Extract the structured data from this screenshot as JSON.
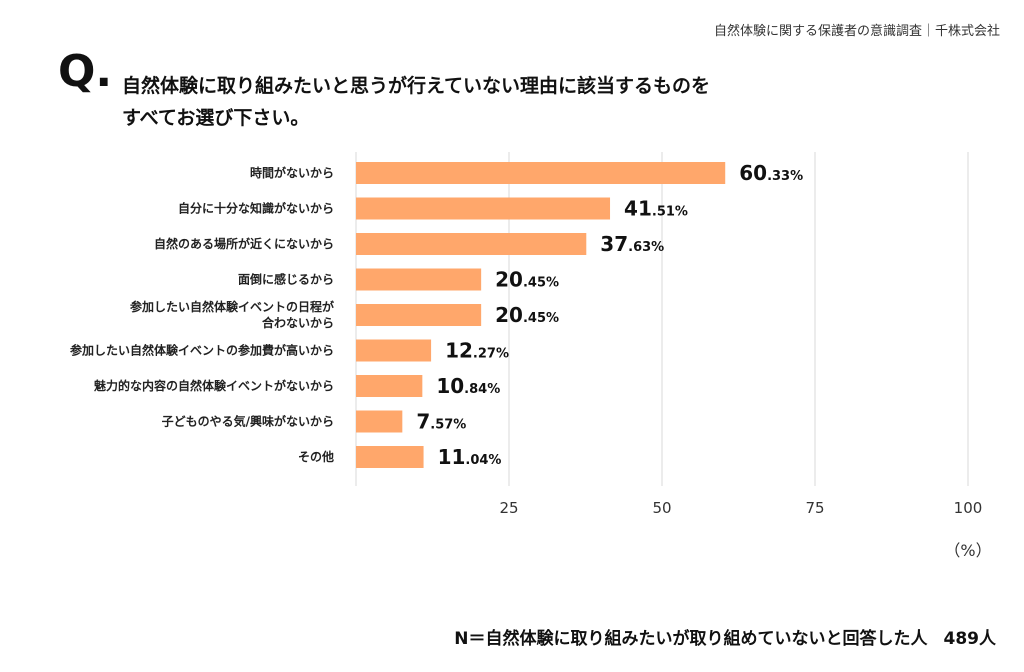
{
  "header": {
    "source": "自然体験に関する保護者の意識調査｜千株式会社"
  },
  "question": {
    "mark": "Q.",
    "line1": "自然体験に取り組みたいと思うが行えていない理由に該当するものを",
    "line2": "すべてお選び下さい。"
  },
  "footnote": {
    "label": "N＝自然体験に取り組みたいが取り組めていないと回答した人",
    "count": "489人"
  },
  "chart_data": {
    "type": "bar",
    "orientation": "horizontal",
    "title": "",
    "xlabel": "（%）",
    "ylabel": "",
    "xlim": [
      0,
      100
    ],
    "xticks": [
      25,
      50,
      75,
      100
    ],
    "grid": true,
    "bar_color": "#FFA76B",
    "categories": [
      [
        "時間がないから"
      ],
      [
        "自分に十分な知識がないから"
      ],
      [
        "自然のある場所が近くにないから"
      ],
      [
        "面倒に感じるから"
      ],
      [
        "参加したい自然体験イベントの日程が",
        "合わないから"
      ],
      [
        "参加したい自然体験イベントの参加費が高いから"
      ],
      [
        "魅力的な内容の自然体験イベントがないから"
      ],
      [
        "子どものやる気/興味がないから"
      ],
      [
        "その他"
      ]
    ],
    "values": [
      60.33,
      41.51,
      37.63,
      20.45,
      20.45,
      12.27,
      10.84,
      7.57,
      11.04
    ],
    "value_labels": [
      [
        "60",
        ".33%"
      ],
      [
        "41",
        ".51%"
      ],
      [
        "37",
        ".63%"
      ],
      [
        "20",
        ".45%"
      ],
      [
        "20",
        ".45%"
      ],
      [
        "12",
        ".27%"
      ],
      [
        "10",
        ".84%"
      ],
      [
        "7",
        ".57%"
      ],
      [
        "11",
        ".04%"
      ]
    ]
  }
}
